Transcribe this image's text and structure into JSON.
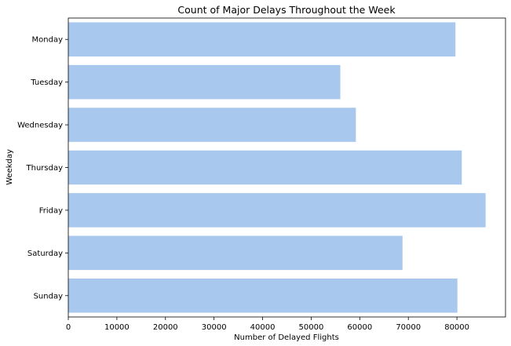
{
  "chart_data": {
    "type": "bar",
    "orientation": "horizontal",
    "title": "Count of Major Delays Throughout the Week",
    "xlabel": "Number of Delayed Flights",
    "ylabel": "Weekday",
    "categories": [
      "Monday",
      "Tuesday",
      "Wednesday",
      "Thursday",
      "Friday",
      "Saturday",
      "Sunday"
    ],
    "values": [
      79700,
      56000,
      59200,
      81000,
      85900,
      68800,
      80100
    ],
    "xlim": [
      0,
      90000
    ],
    "xticks": [
      0,
      10000,
      20000,
      30000,
      40000,
      50000,
      60000,
      70000,
      80000
    ],
    "xtick_labels": [
      "0",
      "10000",
      "20000",
      "30000",
      "40000",
      "50000",
      "60000",
      "70000",
      "80000"
    ],
    "bar_color": "#a9c8ee",
    "grid": false,
    "legend": "none"
  }
}
